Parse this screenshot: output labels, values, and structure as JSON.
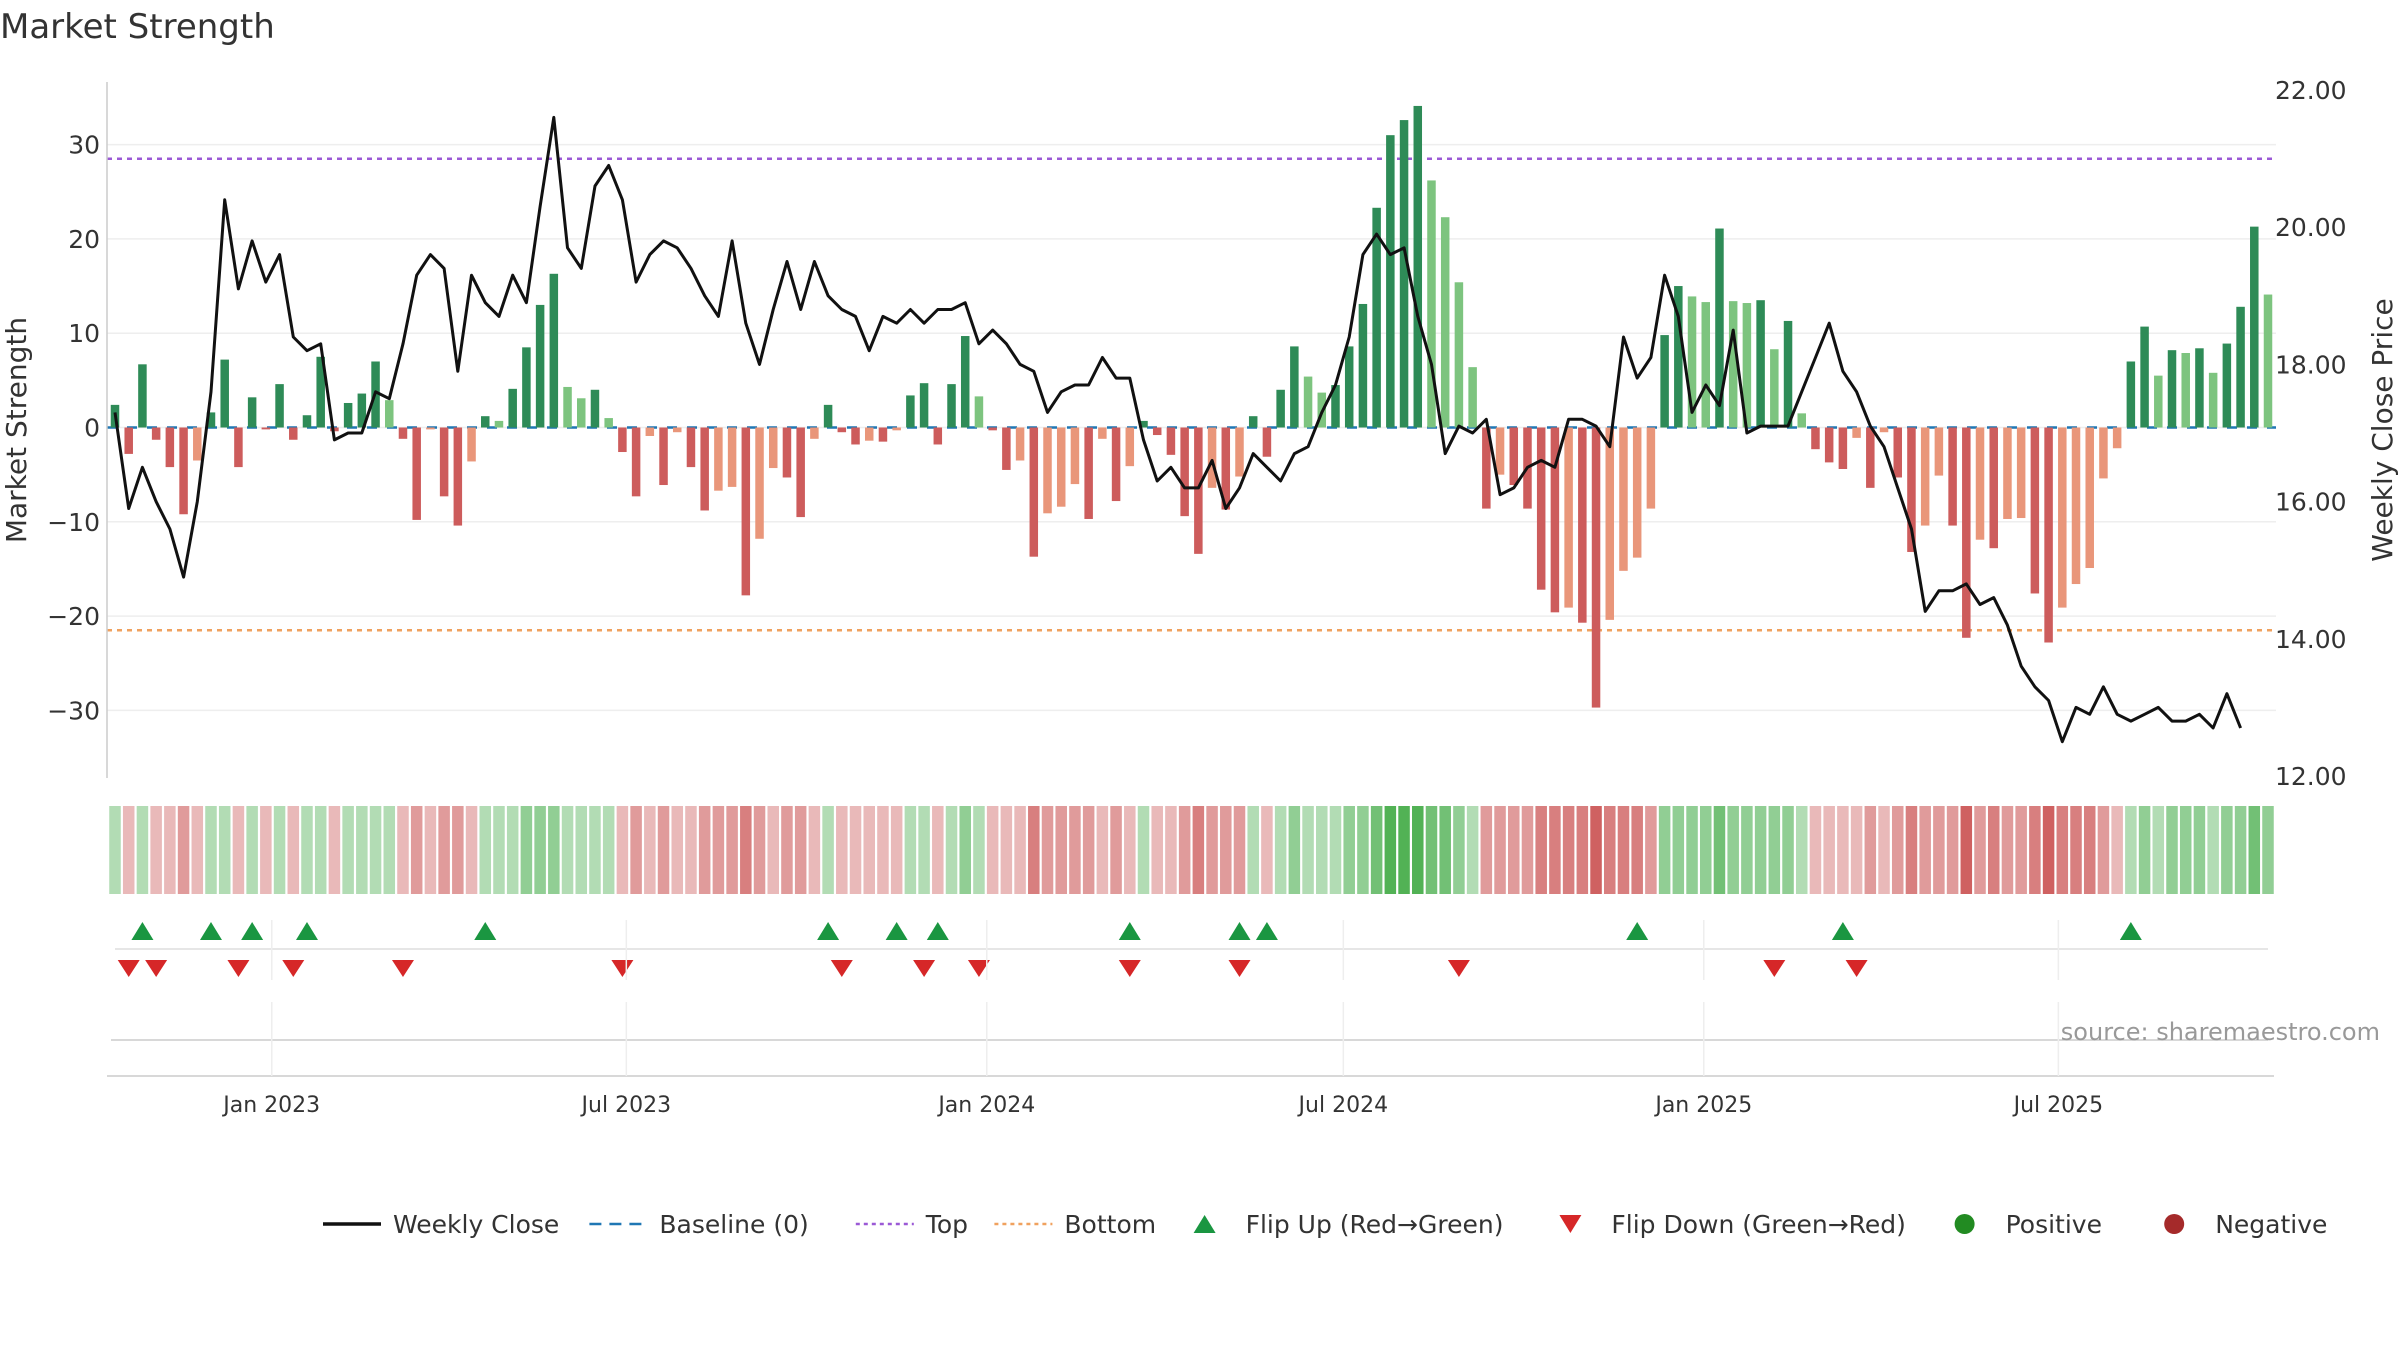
{
  "chart_data": {
    "type": "bar",
    "title": "Market Strength",
    "source": "source: sharemaestro.com",
    "ylabel_left": "Market Strength",
    "ylabel_right": "Weekly Close Price",
    "ylim_left": [
      -37,
      36
    ],
    "ylim_right": [
      12,
      22
    ],
    "yticks_left": [
      "30",
      "20",
      "10",
      "0",
      "−10",
      "−20",
      "−30"
    ],
    "yticks_left_values": [
      30,
      20,
      10,
      0,
      -10,
      -20,
      -30
    ],
    "yticks_right": [
      "22.00",
      "20.00",
      "18.00",
      "16.00",
      "14.00",
      "12.00"
    ],
    "yticks_right_values": [
      22,
      20,
      18,
      16,
      14,
      12
    ],
    "x_start": "2022-10-13",
    "x_step_days": 7,
    "x_ticks": [
      {
        "label": "Jan 2023",
        "date": "2023-01-01"
      },
      {
        "label": "Jul 2023",
        "date": "2023-07-01"
      },
      {
        "label": "Jan 2024",
        "date": "2024-01-01"
      },
      {
        "label": "Jul 2024",
        "date": "2024-07-01"
      },
      {
        "label": "Jan 2025",
        "date": "2025-01-01"
      },
      {
        "label": "Jul 2025",
        "date": "2025-07-01"
      }
    ],
    "top_line": 28.5,
    "bottom_line": -21.5,
    "strength": [
      2.4,
      -2.8,
      6.7,
      -1.3,
      -4.2,
      -9.2,
      -3.5,
      1.6,
      7.2,
      -4.2,
      3.2,
      -0.2,
      4.6,
      -1.3,
      1.3,
      7.5,
      -0.4,
      2.6,
      3.6,
      7.0,
      2.9,
      -1.2,
      -9.8,
      -0.2,
      -7.3,
      -10.4,
      -3.6,
      1.2,
      0.7,
      4.1,
      8.5,
      13.0,
      16.3,
      4.3,
      3.1,
      4.0,
      1.0,
      -2.6,
      -7.3,
      -0.9,
      -6.1,
      -0.5,
      -4.2,
      -8.8,
      -6.7,
      -6.3,
      -17.8,
      -11.8,
      -4.3,
      -5.3,
      -9.5,
      -1.2,
      2.4,
      -0.5,
      -1.8,
      -1.4,
      -1.5,
      -0.3,
      3.4,
      4.7,
      -1.8,
      4.6,
      9.7,
      3.3,
      -0.3,
      -4.5,
      -3.5,
      -13.7,
      -9.1,
      -8.4,
      -6.0,
      -9.7,
      -1.2,
      -7.8,
      -4.1,
      0.7,
      -0.8,
      -2.9,
      -9.4,
      -13.4,
      -6.4,
      -8.7,
      -5.2,
      1.2,
      -3.1,
      4.0,
      8.6,
      5.4,
      3.7,
      4.5,
      8.6,
      13.1,
      23.3,
      31.0,
      32.6,
      34.1,
      26.2,
      22.3,
      15.4,
      6.4,
      -8.6,
      -5.0,
      -6.1,
      -8.6,
      -17.2,
      -19.6,
      -19.1,
      -20.7,
      -29.7,
      -20.4,
      -15.2,
      -13.8,
      -8.6,
      9.8,
      15.0,
      13.9,
      13.3,
      21.1,
      13.4,
      13.2,
      13.5,
      8.3,
      11.3,
      1.5,
      -2.3,
      -3.7,
      -4.4,
      -1.1,
      -6.4,
      -0.5,
      -5.3,
      -13.2,
      -10.4,
      -5.1,
      -10.4,
      -22.3,
      -11.9,
      -12.8,
      -9.7,
      -9.6,
      -17.6,
      -22.8,
      -19.1,
      -16.6,
      -14.9,
      -5.4,
      -2.2,
      7.0,
      10.7,
      5.5,
      8.2,
      7.9,
      8.4,
      5.8,
      8.9,
      12.8,
      21.3,
      14.1
    ],
    "weekly_close": [
      17.3,
      15.9,
      16.5,
      16.0,
      15.6,
      14.9,
      16.0,
      17.6,
      20.4,
      19.1,
      19.8,
      19.2,
      19.6,
      18.4,
      18.2,
      18.3,
      16.9,
      17.0,
      17.0,
      17.6,
      17.5,
      18.3,
      19.3,
      19.6,
      19.4,
      17.9,
      19.3,
      18.9,
      18.7,
      19.3,
      18.9,
      20.3,
      21.6,
      19.7,
      19.4,
      20.6,
      20.9,
      20.4,
      19.2,
      19.6,
      19.8,
      19.7,
      19.4,
      19.0,
      18.7,
      19.8,
      18.6,
      18.0,
      18.8,
      19.5,
      18.8,
      19.5,
      19.0,
      18.8,
      18.7,
      18.2,
      18.7,
      18.6,
      18.8,
      18.6,
      18.8,
      18.8,
      18.9,
      18.3,
      18.5,
      18.3,
      18.0,
      17.9,
      17.3,
      17.6,
      17.7,
      17.7,
      18.1,
      17.8,
      17.8,
      16.9,
      16.3,
      16.5,
      16.2,
      16.2,
      16.6,
      15.9,
      16.2,
      16.7,
      16.5,
      16.3,
      16.7,
      16.8,
      17.3,
      17.7,
      18.4,
      19.6,
      19.9,
      19.6,
      19.7,
      18.7,
      18.0,
      16.7,
      17.1,
      17.0,
      17.2,
      16.1,
      16.2,
      16.5,
      16.6,
      16.5,
      17.2,
      17.2,
      17.1,
      16.8,
      18.4,
      17.8,
      18.1,
      19.3,
      18.7,
      17.3,
      17.7,
      17.4,
      18.5,
      17.0,
      17.1,
      17.1,
      17.1,
      17.6,
      18.1,
      18.6,
      17.9,
      17.6,
      17.1,
      16.8,
      16.2,
      15.6,
      14.4,
      14.7,
      14.7,
      14.8,
      14.5,
      14.6,
      14.2,
      13.6,
      13.3,
      13.1,
      12.5,
      13.0,
      12.9,
      13.3,
      12.9,
      12.8,
      12.9,
      13.0,
      12.8,
      12.8,
      12.9,
      12.7,
      13.2,
      12.7
    ],
    "shade_levels": [
      1,
      -1,
      1,
      -1,
      -1,
      -2,
      -1,
      1,
      1,
      -1,
      1,
      -1,
      1,
      -1,
      1,
      1,
      -1,
      1,
      1,
      1,
      1,
      -1,
      -2,
      -1,
      -2,
      -2,
      -1,
      1,
      1,
      1,
      2,
      2,
      2,
      1,
      1,
      1,
      1,
      -1,
      -2,
      -1,
      -2,
      -1,
      -1,
      -2,
      -2,
      -2,
      -3,
      -2,
      -1,
      -2,
      -2,
      -1,
      1,
      -1,
      -1,
      -1,
      -1,
      -1,
      1,
      1,
      -1,
      1,
      2,
      1,
      -1,
      -1,
      -1,
      -3,
      -2,
      -2,
      -2,
      -2,
      -1,
      -2,
      -1,
      1,
      -1,
      -1,
      -2,
      -3,
      -2,
      -2,
      -2,
      1,
      -1,
      1,
      2,
      1,
      1,
      1,
      2,
      2,
      3,
      4,
      4,
      4,
      3,
      3,
      2,
      1,
      -2,
      -2,
      -2,
      -2,
      -3,
      -3,
      -3,
      -3,
      -4,
      -3,
      -3,
      -3,
      -2,
      2,
      2,
      2,
      2,
      3,
      2,
      2,
      2,
      2,
      2,
      1,
      -1,
      -1,
      -1,
      -1,
      -2,
      -1,
      -2,
      -3,
      -2,
      -2,
      -2,
      -4,
      -2,
      -3,
      -2,
      -2,
      -3,
      -4,
      -3,
      -3,
      -3,
      -2,
      -1,
      1,
      2,
      1,
      2,
      2,
      2,
      1,
      2,
      2,
      3,
      2
    ],
    "flip_up_indices": [
      2,
      7,
      10,
      14,
      27,
      52,
      57,
      60,
      74,
      82,
      84,
      111,
      126,
      147
    ],
    "flip_down_indices": [
      1,
      3,
      9,
      13,
      21,
      37,
      53,
      59,
      63,
      74,
      82,
      98,
      121,
      127
    ],
    "legend": [
      {
        "label": "Weekly Close",
        "kind": "line",
        "color": "#111111"
      },
      {
        "label": "Baseline (0)",
        "kind": "dash",
        "color": "#1f77b4"
      },
      {
        "label": "Top",
        "kind": "dot",
        "color": "#9b59d6"
      },
      {
        "label": "Bottom",
        "kind": "dot",
        "color": "#f0a15e"
      },
      {
        "label": "Flip Up (Red→Green)",
        "kind": "tri-up",
        "color": "#1a9641"
      },
      {
        "label": "Flip Down (Green→Red)",
        "kind": "tri-down",
        "color": "#d62728"
      },
      {
        "label": "Positive",
        "kind": "circle",
        "color": "#228b22"
      },
      {
        "label": "Negative",
        "kind": "circle",
        "color": "#a52a2a"
      }
    ],
    "colors": {
      "pos_strong": "#2e8b57",
      "pos_light": "#7dc47f",
      "neg_strong": "#cd5c5c",
      "neg_light": "#e9967a",
      "top": "#9b59d6",
      "bottom": "#f0a15e",
      "baseline": "#1f77b4",
      "close": "#111111",
      "flip_up": "#1a9641",
      "flip_down": "#d62728"
    }
  }
}
